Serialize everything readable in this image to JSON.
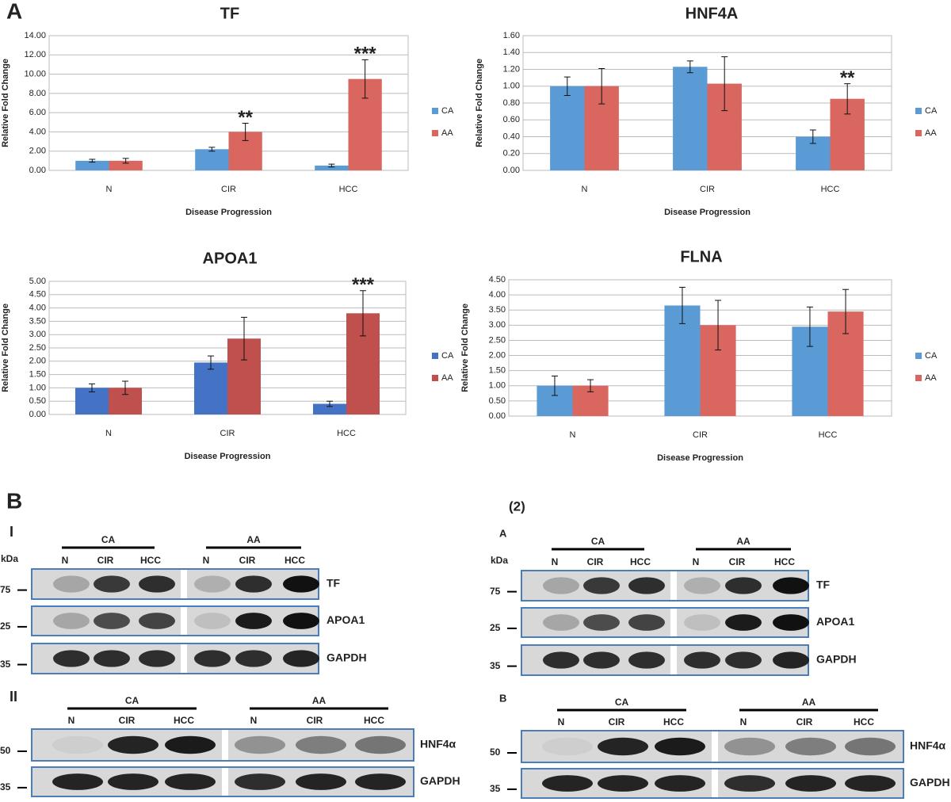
{
  "figure_label": "A",
  "chart_data": [
    {
      "type": "bar",
      "title": "TF",
      "xlabel": "Disease Progression",
      "ylabel": "Relative Fold Change",
      "categories": [
        "N",
        "CIR",
        "HCC"
      ],
      "series": [
        {
          "name": "CA",
          "color": "#5b9bd5",
          "values": [
            1.0,
            2.2,
            0.5
          ],
          "errors": [
            0.15,
            0.2,
            0.15
          ],
          "significance": [
            null,
            null,
            null
          ]
        },
        {
          "name": "AA",
          "color": "#d9665f",
          "values": [
            1.0,
            4.0,
            9.5
          ],
          "errors": [
            0.25,
            0.9,
            2.0
          ],
          "significance": [
            null,
            "**",
            "***"
          ]
        }
      ],
      "ylim": [
        0,
        14
      ],
      "yticks": [
        {
          "value": 0,
          "label": "0.00"
        },
        {
          "value": 2,
          "label": "2.00"
        },
        {
          "value": 4,
          "label": "4.00"
        },
        {
          "value": 6,
          "label": "6.00"
        },
        {
          "value": 8,
          "label": "8.00"
        },
        {
          "value": 10,
          "label": "10.00"
        },
        {
          "value": 12,
          "label": "12.00"
        },
        {
          "value": 14,
          "label": "14.00"
        }
      ],
      "grid": true
    },
    {
      "type": "bar",
      "title": "HNF4A",
      "xlabel": "Disease Progression",
      "ylabel": "Relative Fold Change",
      "categories": [
        "N",
        "CIR",
        "HCC"
      ],
      "series": [
        {
          "name": "CA",
          "color": "#5b9bd5",
          "values": [
            1.0,
            1.23,
            0.4
          ],
          "errors": [
            0.11,
            0.07,
            0.08
          ],
          "significance": [
            null,
            null,
            null
          ]
        },
        {
          "name": "AA",
          "color": "#d9665f",
          "values": [
            1.0,
            1.03,
            0.85
          ],
          "errors": [
            0.21,
            0.32,
            0.18
          ],
          "significance": [
            null,
            null,
            "**"
          ]
        }
      ],
      "ylim": [
        0,
        1.6
      ],
      "yticks": [
        {
          "value": 0,
          "label": "0.00"
        },
        {
          "value": 0.2,
          "label": "0.20"
        },
        {
          "value": 0.4,
          "label": "0.40"
        },
        {
          "value": 0.6,
          "label": "0.60"
        },
        {
          "value": 0.8,
          "label": "0.80"
        },
        {
          "value": 1.0,
          "label": "1.00"
        },
        {
          "value": 1.2,
          "label": "1.20"
        },
        {
          "value": 1.4,
          "label": "1.40"
        },
        {
          "value": 1.6,
          "label": "1.60"
        }
      ],
      "grid": true
    },
    {
      "type": "bar",
      "title": "APOA1",
      "xlabel": "Disease Progression",
      "ylabel": "Relative Fold Change",
      "categories": [
        "N",
        "CIR",
        "HCC"
      ],
      "series": [
        {
          "name": "CA",
          "color": "#4472c4",
          "values": [
            1.0,
            1.95,
            0.4
          ],
          "errors": [
            0.15,
            0.25,
            0.1
          ],
          "significance": [
            null,
            null,
            null
          ]
        },
        {
          "name": "AA",
          "color": "#c0504d",
          "values": [
            1.0,
            2.85,
            3.8
          ],
          "errors": [
            0.25,
            0.8,
            0.85
          ],
          "significance": [
            null,
            null,
            "***"
          ]
        }
      ],
      "ylim": [
        0,
        5
      ],
      "yticks": [
        {
          "value": 0,
          "label": "0.00"
        },
        {
          "value": 0.5,
          "label": "0.50"
        },
        {
          "value": 1,
          "label": "1.00"
        },
        {
          "value": 1.5,
          "label": "1.50"
        },
        {
          "value": 2,
          "label": "2.00"
        },
        {
          "value": 2.5,
          "label": "2.50"
        },
        {
          "value": 3,
          "label": "3.00"
        },
        {
          "value": 3.5,
          "label": "3.50"
        },
        {
          "value": 4,
          "label": "4.00"
        },
        {
          "value": 4.5,
          "label": "4.50"
        },
        {
          "value": 5,
          "label": "5.00"
        }
      ],
      "grid": true
    },
    {
      "type": "bar",
      "title": "FLNA",
      "xlabel": "Disease Progression",
      "ylabel": "Relative Fold Change",
      "categories": [
        "N",
        "CIR",
        "HCC"
      ],
      "series": [
        {
          "name": "CA",
          "color": "#5b9bd5",
          "values": [
            1.0,
            3.65,
            2.95
          ],
          "errors": [
            0.32,
            0.6,
            0.65
          ],
          "significance": [
            null,
            null,
            null
          ]
        },
        {
          "name": "AA",
          "color": "#d9665f",
          "values": [
            1.0,
            3.0,
            3.45
          ],
          "errors": [
            0.2,
            0.82,
            0.73
          ],
          "significance": [
            null,
            null,
            null
          ]
        }
      ],
      "ylim": [
        0,
        4.5
      ],
      "yticks": [
        {
          "value": 0,
          "label": "0.00"
        },
        {
          "value": 0.5,
          "label": "0.50"
        },
        {
          "value": 1,
          "label": "1.00"
        },
        {
          "value": 1.5,
          "label": "1.50"
        },
        {
          "value": 2,
          "label": "2.00"
        },
        {
          "value": 2.5,
          "label": "2.50"
        },
        {
          "value": 3,
          "label": "3.00"
        },
        {
          "value": 3.5,
          "label": "3.50"
        },
        {
          "value": 4,
          "label": "4.00"
        },
        {
          "value": 4.5,
          "label": "4.50"
        }
      ],
      "grid": true
    }
  ],
  "panel_b": {
    "label": "B",
    "right_label": "(2)",
    "blots": [
      {
        "label": "I",
        "kda": "kDa",
        "groups": [
          {
            "name": "CA",
            "lanes": [
              "N",
              "CIR",
              "HCC"
            ]
          },
          {
            "name": "AA",
            "lanes": [
              "N",
              "CIR",
              "HCC"
            ]
          }
        ],
        "rows": [
          {
            "marker": "75",
            "name": "TF"
          },
          {
            "marker": "25",
            "name": "APOA1"
          },
          {
            "marker": "35",
            "name": "GAPDH"
          }
        ]
      },
      {
        "label": "II",
        "groups": [
          {
            "name": "CA",
            "lanes": [
              "N",
              "CIR",
              "HCC"
            ]
          },
          {
            "name": "AA",
            "lanes": [
              "N",
              "CIR",
              "HCC"
            ]
          }
        ],
        "rows": [
          {
            "marker": "50",
            "name": "HNF4α"
          },
          {
            "marker": "35",
            "name": "GAPDH"
          }
        ]
      },
      {
        "label": "A",
        "kda": "kDa",
        "groups": [
          {
            "name": "CA",
            "lanes": [
              "N",
              "CIR",
              "HCC"
            ]
          },
          {
            "name": "AA",
            "lanes": [
              "N",
              "CIR",
              "HCC"
            ]
          }
        ],
        "rows": [
          {
            "marker": "75",
            "name": "TF"
          },
          {
            "marker": "25",
            "name": "APOA1"
          },
          {
            "marker": "35",
            "name": "GAPDH"
          }
        ]
      },
      {
        "label": "B",
        "groups": [
          {
            "name": "CA",
            "lanes": [
              "N",
              "CIR",
              "HCC"
            ]
          },
          {
            "name": "AA",
            "lanes": [
              "N",
              "CIR",
              "HCC"
            ]
          }
        ],
        "rows": [
          {
            "marker": "50",
            "name": "HNF4α"
          },
          {
            "marker": "35",
            "name": "GAPDH"
          }
        ]
      }
    ]
  }
}
